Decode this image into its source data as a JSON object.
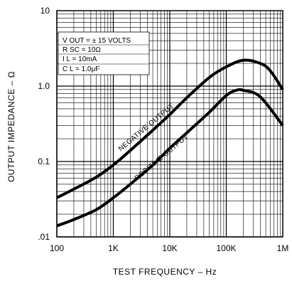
{
  "chart_data": {
    "type": "line",
    "title": "",
    "xlabel": "TEST FREQUENCY – Hz",
    "ylabel": "OUTPUT IMPEDANCE – Ω",
    "x_scale": "log",
    "y_scale": "log",
    "xlim": [
      100,
      1000000
    ],
    "ylim": [
      0.01,
      10
    ],
    "grid": true,
    "x_ticks": [
      "100",
      "1K",
      "10K",
      "100K",
      "1M"
    ],
    "y_ticks": [
      "10",
      "1.0",
      "0.1",
      ".01"
    ],
    "conditions": {
      "line1": "V OUT = ± 15 VOLTS",
      "line2": "R SC = 10Ω",
      "line3": "I L = 10mA",
      "line4": "C L = 1.0μF"
    },
    "series": [
      {
        "name": "NEGATIVE OUTPUT",
        "x": [
          100,
          200,
          500,
          1000,
          2000,
          5000,
          10000,
          20000,
          50000,
          100000,
          200000,
          400000,
          600000,
          1000000
        ],
        "y": [
          0.033,
          0.043,
          0.062,
          0.09,
          0.14,
          0.26,
          0.42,
          0.7,
          1.3,
          1.8,
          2.2,
          2.0,
          1.6,
          0.9
        ]
      },
      {
        "name": "POSITIVE OUTPUT",
        "x": [
          100,
          200,
          500,
          1000,
          2000,
          5000,
          10000,
          20000,
          50000,
          100000,
          150000,
          200000,
          400000,
          1000000
        ],
        "y": [
          0.014,
          0.017,
          0.023,
          0.033,
          0.05,
          0.09,
          0.15,
          0.24,
          0.45,
          0.75,
          0.88,
          0.88,
          0.72,
          0.3
        ]
      }
    ]
  }
}
